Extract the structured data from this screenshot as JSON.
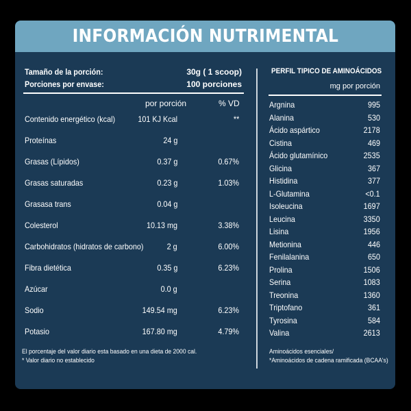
{
  "header": {
    "title": "INFORMACIÓN NUTRIMENTAL"
  },
  "serving": {
    "size_label": "Tamaño de la porción:",
    "size_value": "30g ( 1 scoop)",
    "portions_label": "Porciones por envase:",
    "portions_value": "100 porciones"
  },
  "columns": {
    "per_portion": "por porción",
    "vd": "% VD"
  },
  "nutrients": [
    {
      "label": "Contenido energético (kcal)",
      "amount": "101 KJ Kcal",
      "vd": "**"
    },
    {
      "label": "Proteínas",
      "amount": "24 g",
      "vd": ""
    },
    {
      "label": "Grasas (Lípidos)",
      "amount": "0.37 g",
      "vd": "0.67%"
    },
    {
      "label": "Grasas saturadas",
      "amount": "0.23 g",
      "vd": "1.03%"
    },
    {
      "label": "Grasasa trans",
      "amount": "0.04 g",
      "vd": ""
    },
    {
      "label": "Colesterol",
      "amount": "10.13 mg",
      "vd": "3.38%"
    },
    {
      "label": "Carbohidratos (hidratos de carbono)",
      "amount": "2 g",
      "vd": "6.00%"
    },
    {
      "label": "Fibra dietética",
      "amount": "0.35 g",
      "vd": "6.23%"
    },
    {
      "label": "Azúcar",
      "amount": "0.0 g",
      "vd": ""
    },
    {
      "label": "Sodio",
      "amount": "149.54 mg",
      "vd": "6.23%"
    },
    {
      "label": "Potasio",
      "amount": "167.80 mg",
      "vd": "4.79%"
    }
  ],
  "footnotes": {
    "line1": "El porcentaje del valor diario esta basado en una dieta de 2000 cal.",
    "line2": "* Valor diario no establecido"
  },
  "amino": {
    "title": "PERFIL TIPICO DE AMINOÁCIDOS",
    "unit": "mg por porción",
    "items": [
      {
        "name": "Argnina",
        "value": "995"
      },
      {
        "name": "Alanina",
        "value": "530"
      },
      {
        "name": "Ácido aspártico",
        "value": "2178"
      },
      {
        "name": "Cistina",
        "value": "469"
      },
      {
        "name": "Ácido glutamínico",
        "value": "2535"
      },
      {
        "name": "Glicina",
        "value": "367"
      },
      {
        "name": "Histidina",
        "value": "377"
      },
      {
        "name": "L-Glutamina",
        "value": "<0.1"
      },
      {
        "name": "Isoleucina",
        "value": "1697"
      },
      {
        "name": "Leucina",
        "value": "3350"
      },
      {
        "name": "Lisina",
        "value": "1956"
      },
      {
        "name": "Metionina",
        "value": "446"
      },
      {
        "name": "Fenilalanina",
        "value": "650"
      },
      {
        "name": "Prolina",
        "value": "1506"
      },
      {
        "name": "Serina",
        "value": "1083"
      },
      {
        "name": "Treonina",
        "value": "1360"
      },
      {
        "name": "Triptofano",
        "value": "361"
      },
      {
        "name": "Tyrosina",
        "value": "584"
      },
      {
        "name": "Valina",
        "value": "2613"
      }
    ],
    "footnote1": "Aminoácidos esenciales/",
    "footnote2": "*Aminoácidos de cadena ramificada (BCAA's)"
  },
  "colors": {
    "background": "#000000",
    "panel": "#1b3a55",
    "header": "#6fa6c0",
    "text": "#ffffff"
  }
}
